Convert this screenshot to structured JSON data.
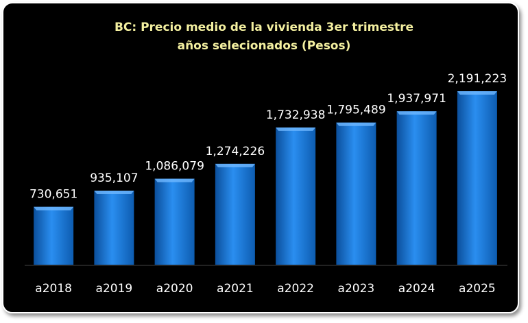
{
  "chart_data": {
    "type": "bar",
    "title": "BC: Precio medio de la vivienda 3er trimestre",
    "subtitle": "años selecionados  (Pesos)",
    "categories": [
      "a2018",
      "a2019",
      "a2020",
      "a2021",
      "a2022",
      "a2023",
      "a2024",
      "a2025"
    ],
    "values": [
      730651,
      935107,
      1086079,
      1274226,
      1732938,
      1795489,
      1937971,
      2191223
    ],
    "value_labels": [
      "730,651",
      "935,107",
      "1,086,079",
      "1,274,226",
      "1,732,938",
      "1,795,489",
      "1,937,971",
      "2,191,223"
    ],
    "color": "#1f7fd8"
  }
}
